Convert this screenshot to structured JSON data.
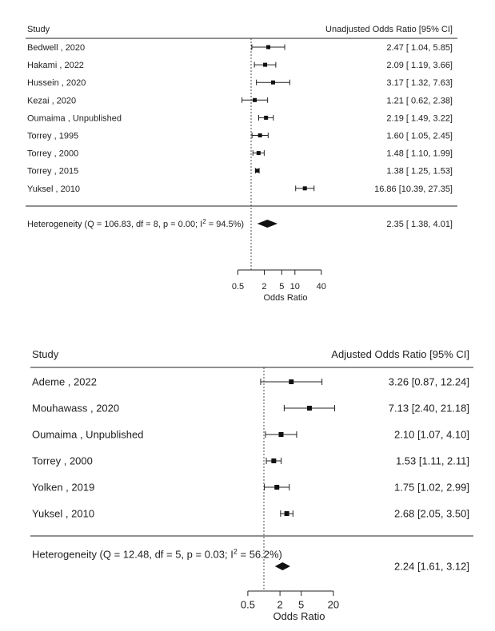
{
  "chart_data": [
    {
      "type": "forest",
      "xscale": "log",
      "column_study": "Study",
      "column_effect": "Unadjusted Odds Ratio [95% CI]",
      "xlabel": "Odds Ratio",
      "ticks": [
        0.5,
        2,
        5,
        10,
        40
      ],
      "tick_labels": [
        "0.5",
        "2",
        "5",
        "10",
        "40"
      ],
      "xlim": [
        0.5,
        40
      ],
      "reference_line": 1,
      "studies": [
        {
          "name": "Bedwell , 2020",
          "or": 2.47,
          "lo": 1.04,
          "hi": 5.85,
          "ci_text": "2.47 [ 1.04,  5.85]"
        },
        {
          "name": "Hakami , 2022",
          "or": 2.09,
          "lo": 1.19,
          "hi": 3.66,
          "ci_text": "2.09 [ 1.19,  3.66]"
        },
        {
          "name": "Hussein , 2020",
          "or": 3.17,
          "lo": 1.32,
          "hi": 7.63,
          "ci_text": "3.17 [ 1.32,  7.63]"
        },
        {
          "name": "Kezai , 2020",
          "or": 1.21,
          "lo": 0.62,
          "hi": 2.38,
          "ci_text": "1.21 [ 0.62,  2.38]"
        },
        {
          "name": "Oumaima , Unpublished",
          "or": 2.19,
          "lo": 1.49,
          "hi": 3.22,
          "ci_text": "2.19 [ 1.49,  3.22]"
        },
        {
          "name": "Torrey , 1995",
          "or": 1.6,
          "lo": 1.05,
          "hi": 2.45,
          "ci_text": "1.60 [ 1.05,  2.45]"
        },
        {
          "name": "Torrey , 2000",
          "or": 1.48,
          "lo": 1.1,
          "hi": 1.99,
          "ci_text": "1.48 [ 1.10,  1.99]"
        },
        {
          "name": "Torrey , 2015",
          "or": 1.38,
          "lo": 1.25,
          "hi": 1.53,
          "ci_text": "1.38 [ 1.25,  1.53]"
        },
        {
          "name": "Yuksel , 2010",
          "or": 16.86,
          "lo": 10.39,
          "hi": 27.35,
          "ci_text": "16.86 [10.39, 27.35]"
        }
      ],
      "summary": {
        "or": 2.35,
        "lo": 1.38,
        "hi": 4.01,
        "ci_text": "2.35 [ 1.38,  4.01]",
        "het_prefix": "Heterogeneity (Q = 106.83, df = 8, p = 0.00; I",
        "het_sup": "2",
        "het_suffix": " = 94.5%)"
      }
    },
    {
      "type": "forest",
      "xscale": "log",
      "column_study": "Study",
      "column_effect": "Adjusted Odds Ratio [95% CI]",
      "xlabel": "Odds Ratio",
      "ticks": [
        0.5,
        2,
        5,
        20
      ],
      "tick_labels": [
        "0.5",
        "2",
        "5",
        "20"
      ],
      "xlim": [
        0.5,
        20
      ],
      "reference_line": 1,
      "studies": [
        {
          "name": "Ademe , 2022",
          "or": 3.26,
          "lo": 0.87,
          "hi": 12.24,
          "ci_text": "3.26 [0.87, 12.24]"
        },
        {
          "name": "Mouhawass , 2020",
          "or": 7.13,
          "lo": 2.4,
          "hi": 21.18,
          "ci_text": "7.13 [2.40, 21.18]"
        },
        {
          "name": "Oumaima , Unpublished",
          "or": 2.1,
          "lo": 1.07,
          "hi": 4.1,
          "ci_text": "2.10 [1.07, 4.10]"
        },
        {
          "name": "Torrey , 2000",
          "or": 1.53,
          "lo": 1.11,
          "hi": 2.11,
          "ci_text": "1.53 [1.11, 2.11]"
        },
        {
          "name": "Yolken , 2019",
          "or": 1.75,
          "lo": 1.02,
          "hi": 2.99,
          "ci_text": "1.75 [1.02, 2.99]"
        },
        {
          "name": "Yuksel , 2010",
          "or": 2.68,
          "lo": 2.05,
          "hi": 3.5,
          "ci_text": "2.68 [2.05, 3.50]"
        }
      ],
      "summary": {
        "or": 2.24,
        "lo": 1.61,
        "hi": 3.12,
        "ci_text": "2.24 [1.61, 3.12]",
        "het_prefix": "Heterogeneity (Q = 12.48, df = 5, p = 0.03; I",
        "het_sup": "2",
        "het_suffix": " = 56.2%)"
      }
    }
  ]
}
